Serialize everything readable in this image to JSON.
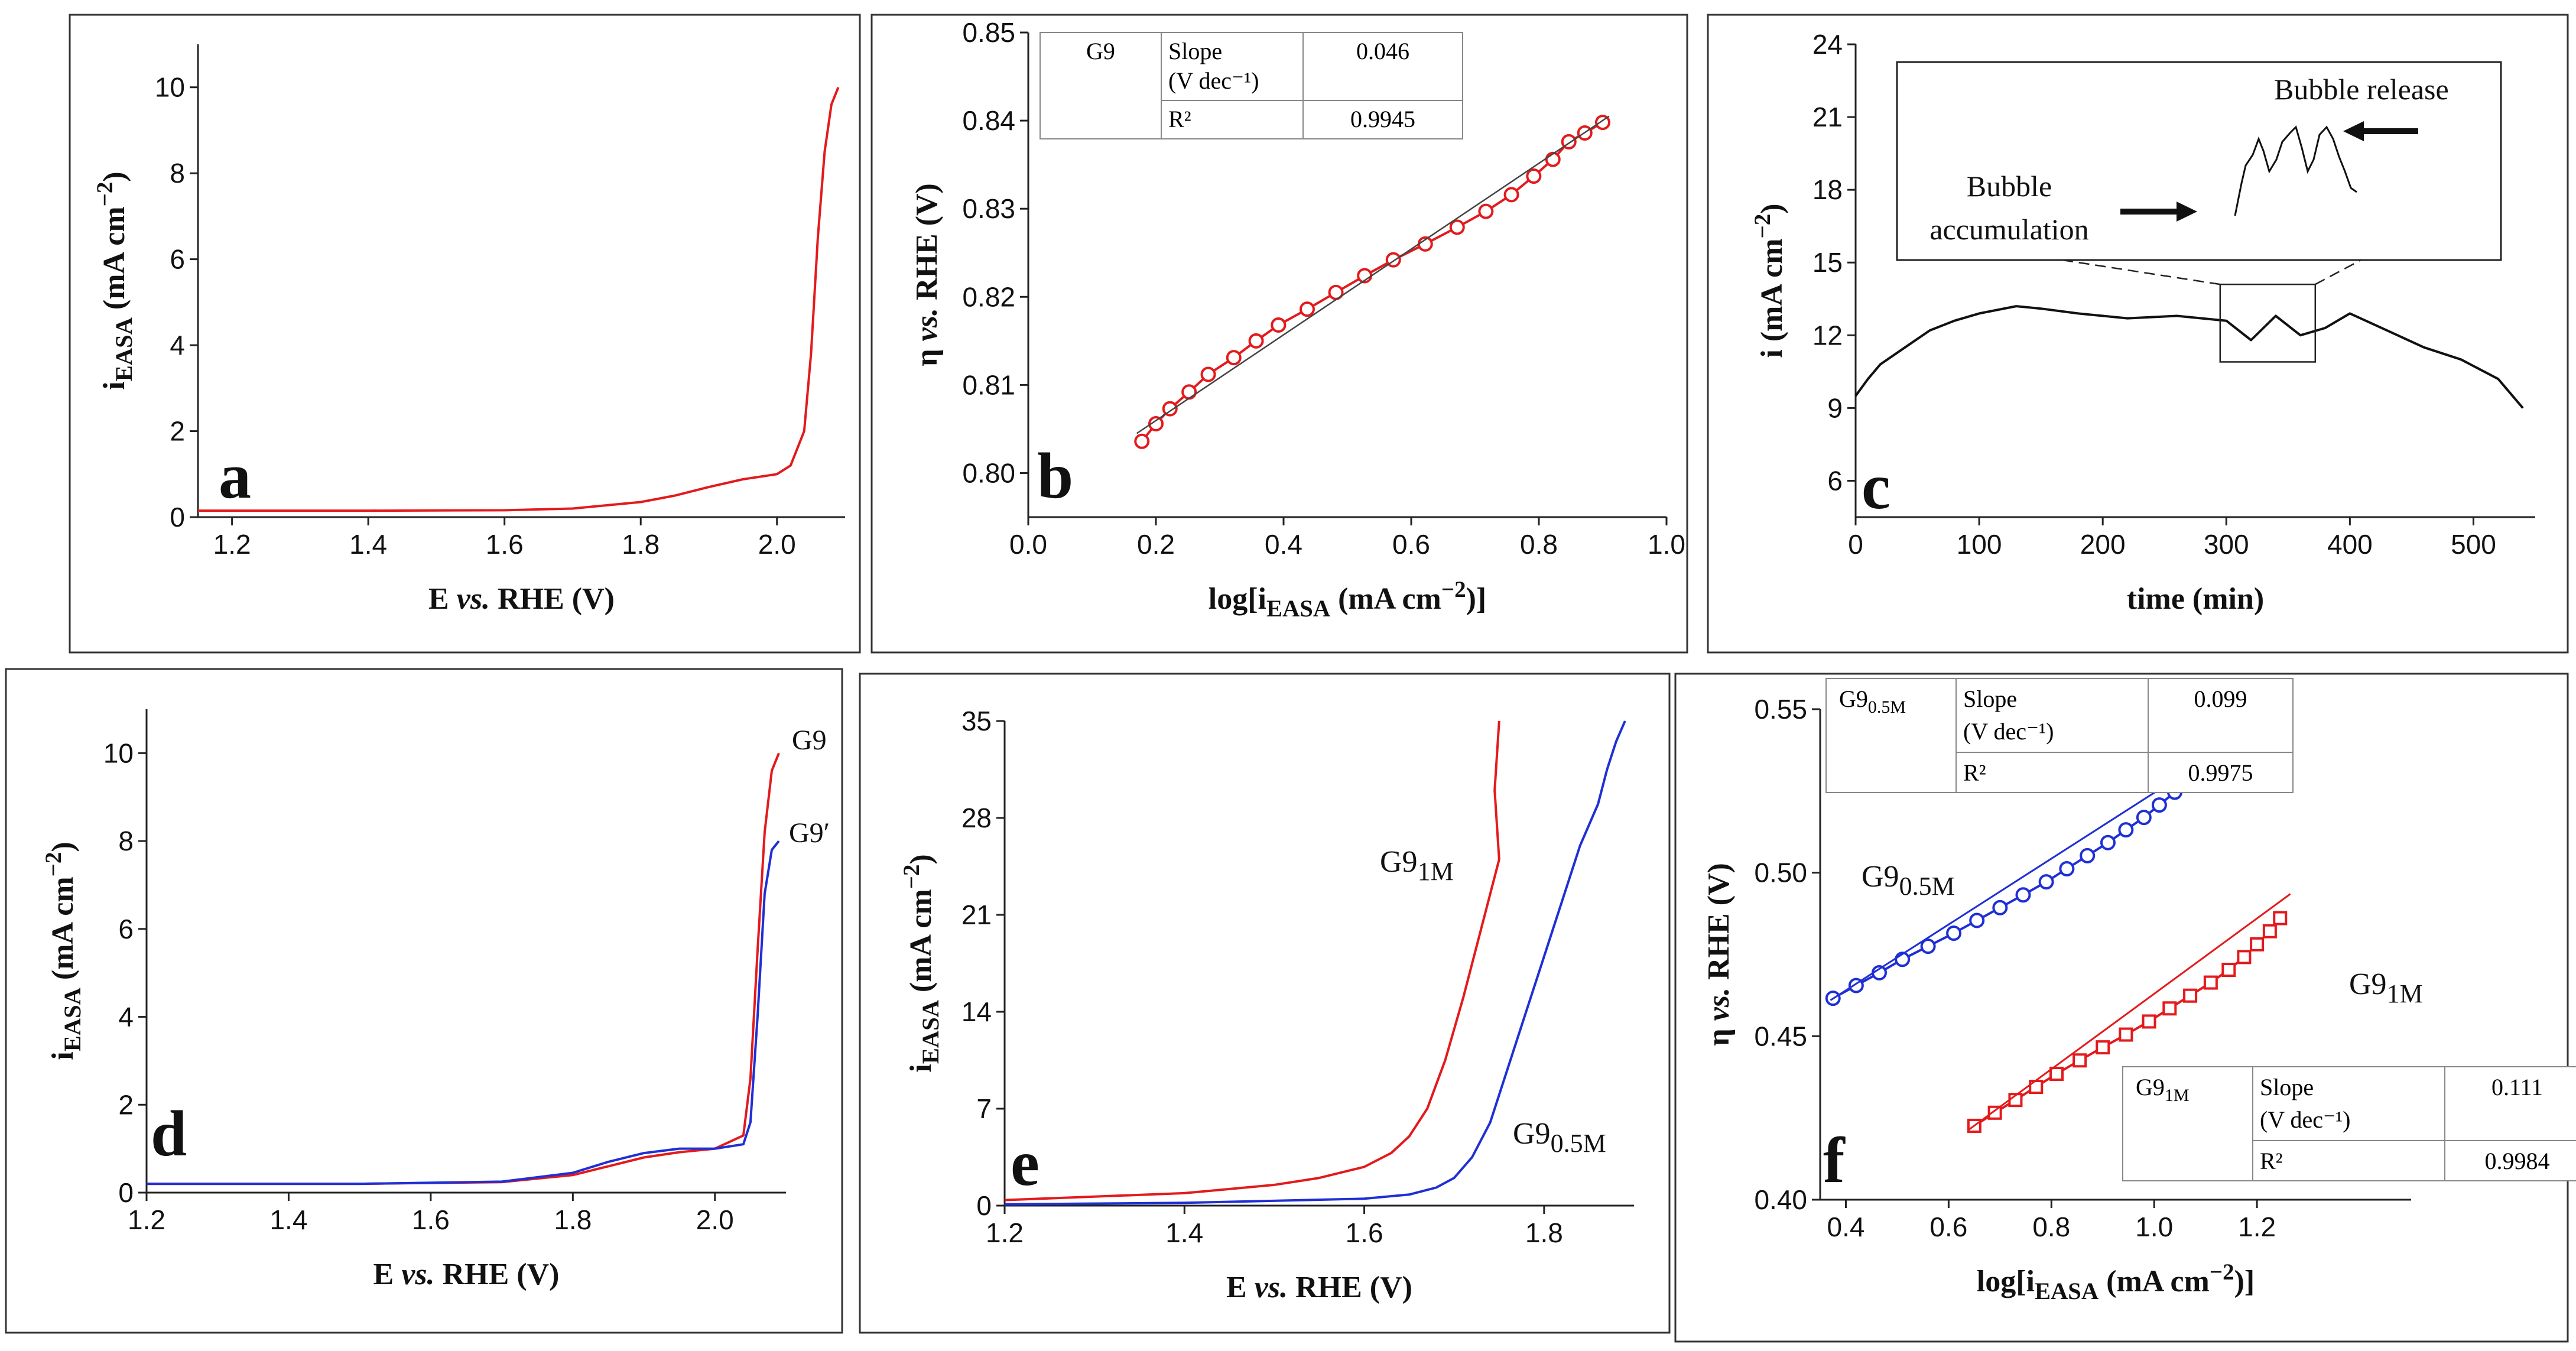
{
  "panels": [
    {
      "id": "a",
      "letter": "a",
      "xlabel": {
        "main": "E ",
        "italic": "vs.",
        "rest": " RHE (V)"
      },
      "ylabel": {
        "sym": "i",
        "sub": "EASA",
        "rest": " (mA cm",
        "sup": "−2",
        "close": ")"
      },
      "chart_data": {
        "type": "line",
        "xlim": [
          1.15,
          2.1
        ],
        "ylim": [
          0,
          11
        ],
        "xticks": [
          1.2,
          1.4,
          1.6,
          1.8,
          2.0
        ],
        "xtick_labels": [
          "1.2",
          "1.4",
          "1.6",
          "1.8",
          "2.0"
        ],
        "yticks": [
          0,
          2,
          4,
          6,
          8,
          10
        ],
        "ytick_labels": [
          "0",
          "2",
          "4",
          "6",
          "8",
          "10"
        ],
        "series": [
          {
            "color": "#e31a1c",
            "x": [
              1.15,
              1.4,
              1.6,
              1.7,
              1.8,
              1.85,
              1.9,
              1.95,
              2.0,
              2.02,
              2.04,
              2.05,
              2.06,
              2.07,
              2.08,
              2.09
            ],
            "y": [
              0.15,
              0.15,
              0.16,
              0.2,
              0.35,
              0.5,
              0.7,
              0.88,
              1.0,
              1.2,
              2.0,
              3.8,
              6.5,
              8.5,
              9.6,
              10.0
            ]
          }
        ]
      }
    },
    {
      "id": "b",
      "letter": "b",
      "xlabel": {
        "pre": "log[",
        "sym": "i",
        "sub": "EASA",
        "rest": " (mA cm",
        "sup": "−2",
        "close": ")]"
      },
      "ylabel": {
        "sym": "η ",
        "italic": "vs.",
        "rest": " RHE (V)"
      },
      "chart_data": {
        "type": "scatter",
        "xlim": [
          0,
          1.0
        ],
        "ylim": [
          0.795,
          0.85
        ],
        "xticks": [
          0,
          0.2,
          0.4,
          0.6,
          0.8,
          1.0
        ],
        "xtick_labels": [
          "0.0",
          "0.2",
          "0.4",
          "0.6",
          "0.8",
          "1.0"
        ],
        "yticks": [
          0.8,
          0.81,
          0.82,
          0.83,
          0.84,
          0.85
        ],
        "ytick_labels": [
          "0.80",
          "0.81",
          "0.82",
          "0.83",
          "0.84",
          "0.85"
        ],
        "series": [
          {
            "color": "#e31a1c",
            "marker": "circle",
            "x": [
              0.178,
              0.2,
              0.222,
              0.252,
              0.282,
              0.322,
              0.357,
              0.392,
              0.437,
              0.482,
              0.527,
              0.572,
              0.622,
              0.672,
              0.717,
              0.757,
              0.792,
              0.822,
              0.847,
              0.872,
              0.9
            ],
            "y": [
              0.8036,
              0.8056,
              0.8073,
              0.8092,
              0.8112,
              0.8131,
              0.815,
              0.8168,
              0.8186,
              0.8205,
              0.8224,
              0.8242,
              0.826,
              0.8279,
              0.8297,
              0.8316,
              0.8337,
              0.8356,
              0.8376,
              0.8386,
              0.8398
            ]
          }
        ],
        "fit": {
          "color": "#444444",
          "x": [
            0.17,
            0.91
          ],
          "y": [
            0.8045,
            0.8405
          ]
        },
        "table": {
          "rows": [
            [
              "G9",
              "Slope\n(V dec⁻¹)",
              "0.046"
            ],
            [
              "",
              "R²",
              "0.9945"
            ]
          ]
        }
      }
    },
    {
      "id": "c",
      "letter": "c",
      "xlabel": {
        "main": "time (min)"
      },
      "ylabel": {
        "sym": "i",
        "rest": " (mA cm",
        "sup": "−2",
        "close": ")"
      },
      "chart_data": {
        "type": "line",
        "xlim": [
          0,
          550
        ],
        "ylim": [
          4.5,
          24
        ],
        "xticks": [
          0,
          100,
          200,
          300,
          400,
          500
        ],
        "xtick_labels": [
          "0",
          "100",
          "200",
          "300",
          "400",
          "500"
        ],
        "yticks": [
          6,
          9,
          12,
          15,
          18,
          21,
          24
        ],
        "ytick_labels": [
          "6",
          "9",
          "12",
          "15",
          "18",
          "21",
          "24"
        ],
        "series": [
          {
            "color": "#111111",
            "x": [
              0,
              10,
              20,
              40,
              60,
              80,
              100,
              130,
              150,
              180,
              220,
              260,
              300,
              320,
              340,
              360,
              380,
              400,
              430,
              460,
              490,
              520,
              540
            ],
            "y": [
              9.5,
              10.2,
              10.8,
              11.5,
              12.2,
              12.6,
              12.9,
              13.2,
              13.1,
              12.9,
              12.7,
              12.8,
              12.6,
              11.8,
              12.8,
              12.0,
              12.3,
              12.9,
              12.2,
              11.5,
              11.0,
              10.2,
              9.0
            ]
          }
        ],
        "inset": {
          "x0": 295,
          "x1": 372,
          "y0": 10.9,
          "y1": 14.1
        },
        "annotations": [
          "Bubble release",
          "Bubble\naccumulation"
        ]
      }
    },
    {
      "id": "d",
      "letter": "d",
      "xlabel": {
        "main": "E ",
        "italic": "vs.",
        "rest": " RHE (V)"
      },
      "ylabel": {
        "sym": "i",
        "sub": "EASA",
        "rest": " (mA cm",
        "sup": "−2",
        "close": ")"
      },
      "chart_data": {
        "type": "line",
        "xlim": [
          1.2,
          2.1
        ],
        "ylim": [
          0,
          11
        ],
        "xticks": [
          1.2,
          1.4,
          1.6,
          1.8,
          2.0
        ],
        "xtick_labels": [
          "1.2",
          "1.4",
          "1.6",
          "1.8",
          "2.0"
        ],
        "yticks": [
          0,
          2,
          4,
          6,
          8,
          10
        ],
        "ytick_labels": [
          "0",
          "2",
          "4",
          "6",
          "8",
          "10"
        ],
        "series": [
          {
            "name": "G9",
            "color": "#e31a1c",
            "x": [
              1.2,
              1.5,
              1.7,
              1.8,
              1.85,
              1.9,
              1.95,
              2.0,
              2.04,
              2.05,
              2.06,
              2.07,
              2.08,
              2.09
            ],
            "y": [
              0.2,
              0.2,
              0.24,
              0.4,
              0.6,
              0.8,
              0.92,
              1.0,
              1.3,
              2.6,
              5.5,
              8.2,
              9.6,
              10.0
            ]
          },
          {
            "name": "G9′",
            "color": "#1f2fd6",
            "x": [
              1.2,
              1.5,
              1.7,
              1.8,
              1.85,
              1.9,
              1.95,
              2.0,
              2.04,
              2.05,
              2.06,
              2.07,
              2.08,
              2.09
            ],
            "y": [
              0.2,
              0.2,
              0.25,
              0.45,
              0.7,
              0.9,
              1.0,
              1.0,
              1.1,
              1.6,
              4.0,
              6.8,
              7.8,
              8.0
            ]
          }
        ]
      }
    },
    {
      "id": "e",
      "letter": "e",
      "xlabel": {
        "main": "E ",
        "italic": "vs.",
        "rest": " RHE (V)"
      },
      "ylabel": {
        "sym": "i",
        "sub": "EASA",
        "rest": " (mA cm",
        "sup": "−2",
        "close": ")"
      },
      "chart_data": {
        "type": "line",
        "xlim": [
          1.2,
          1.9
        ],
        "ylim": [
          0,
          35
        ],
        "xticks": [
          1.2,
          1.4,
          1.6,
          1.8
        ],
        "xtick_labels": [
          "1.2",
          "1.4",
          "1.6",
          "1.8"
        ],
        "yticks": [
          0,
          7,
          14,
          21,
          28,
          35
        ],
        "ytick_labels": [
          "0",
          "7",
          "14",
          "21",
          "28",
          "35"
        ],
        "series": [
          {
            "name": "G9",
            "name_sub": "1M",
            "color": "#e31a1c",
            "x": [
              1.2,
              1.4,
              1.5,
              1.55,
              1.6,
              1.63,
              1.65,
              1.67,
              1.69,
              1.71,
              1.73,
              1.75,
              1.745,
              1.75
            ],
            "y": [
              0.4,
              0.9,
              1.5,
              2.0,
              2.8,
              3.8,
              5.0,
              7.0,
              10.5,
              15.0,
              20.0,
              25.0,
              30.0,
              35.0
            ]
          },
          {
            "name": "G9",
            "name_sub": "0.5M",
            "color": "#1f2fd6",
            "x": [
              1.2,
              1.4,
              1.6,
              1.65,
              1.68,
              1.7,
              1.72,
              1.74,
              1.76,
              1.78,
              1.8,
              1.82,
              1.84,
              1.86,
              1.87,
              1.88,
              1.89
            ],
            "y": [
              0.1,
              0.2,
              0.5,
              0.8,
              1.3,
              2.0,
              3.5,
              6.0,
              10.0,
              14.0,
              18.0,
              22.0,
              26.0,
              29.0,
              31.5,
              33.5,
              35.0
            ]
          }
        ]
      }
    },
    {
      "id": "f",
      "letter": "f",
      "xlabel": {
        "pre": "log[",
        "sym": "i",
        "sub": "EASA",
        "rest": " (mA cm",
        "sup": "−2",
        "close": ")]"
      },
      "ylabel": {
        "sym": "η ",
        "italic": "vs.",
        "rest": " RHE (V)"
      },
      "chart_data": {
        "type": "scatter",
        "xlim": [
          0.35,
          1.5
        ],
        "ylim": [
          0.4,
          0.55
        ],
        "xticks": [
          0.4,
          0.6,
          0.8,
          1.0,
          1.2
        ],
        "xtick_labels": [
          "0.4",
          "0.6",
          "0.8",
          "1.0",
          "1.2"
        ],
        "yticks": [
          0.4,
          0.45,
          0.5,
          0.55
        ],
        "ytick_labels": [
          "0.40",
          "0.45",
          "0.50",
          "0.55"
        ],
        "series": [
          {
            "name": "G9",
            "name_sub": "0.5M",
            "color": "#1f2fd6",
            "marker": "circle",
            "x": [
              0.375,
              0.42,
              0.465,
              0.51,
              0.56,
              0.61,
              0.655,
              0.7,
              0.745,
              0.79,
              0.83,
              0.87,
              0.91,
              0.945,
              0.98,
              1.01,
              1.04,
              1.065
            ],
            "y": [
              0.4616,
              0.4655,
              0.4694,
              0.4735,
              0.4775,
              0.4815,
              0.4854,
              0.4893,
              0.4932,
              0.4972,
              0.5012,
              0.5052,
              0.5092,
              0.5131,
              0.5169,
              0.5207,
              0.5246,
              0.5286
            ]
          },
          {
            "name": "G9",
            "name_sub": "1M",
            "color": "#e31a1c",
            "marker": "square",
            "x": [
              0.65,
              0.69,
              0.73,
              0.77,
              0.81,
              0.855,
              0.9,
              0.945,
              0.99,
              1.03,
              1.07,
              1.11,
              1.145,
              1.175,
              1.2,
              1.225,
              1.245
            ],
            "y": [
              0.4226,
              0.4266,
              0.4305,
              0.4345,
              0.4385,
              0.4426,
              0.4466,
              0.4505,
              0.4545,
              0.4585,
              0.4624,
              0.4664,
              0.4703,
              0.4742,
              0.4781,
              0.4821,
              0.4861
            ]
          }
        ],
        "fits": [
          {
            "color": "#1f2fd6",
            "x": [
              0.37,
              1.08
            ],
            "y": [
              0.461,
              0.5325
            ]
          },
          {
            "color": "#e31a1c",
            "x": [
              0.64,
              1.265
            ],
            "y": [
              0.4215,
              0.4935
            ]
          }
        ],
        "tables": [
          {
            "label": "G9",
            "label_sub": "0.5M",
            "rows": [
              [
                "Slope\n(V dec⁻¹)",
                "0.099"
              ],
              [
                "R²",
                "0.9975"
              ]
            ]
          },
          {
            "label": "G9",
            "label_sub": "1M",
            "rows": [
              [
                "Slope\n(V dec⁻¹)",
                "0.111"
              ],
              [
                "R²",
                "0.9984"
              ]
            ]
          }
        ]
      }
    }
  ]
}
